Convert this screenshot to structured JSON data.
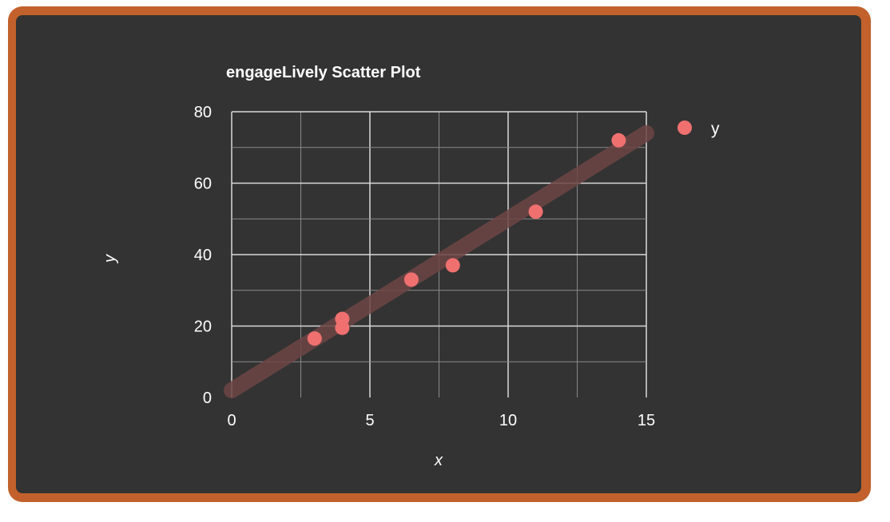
{
  "chart_data": {
    "type": "scatter",
    "title": "engageLively Scatter Plot",
    "xlabel": "x",
    "ylabel": "y",
    "xlim": [
      0,
      15
    ],
    "ylim": [
      0,
      80
    ],
    "x_ticks": [
      0,
      5,
      10,
      15
    ],
    "y_ticks": [
      0,
      20,
      40,
      60,
      80
    ],
    "x_minor_step": 2.5,
    "y_minor_step": 10,
    "grid": true,
    "legend_position": "top-right",
    "series": [
      {
        "name": "y",
        "color": "#f07070",
        "points": [
          {
            "x": 3,
            "y": 16.5
          },
          {
            "x": 4,
            "y": 19.5
          },
          {
            "x": 4,
            "y": 22
          },
          {
            "x": 6.5,
            "y": 33
          },
          {
            "x": 8,
            "y": 37
          },
          {
            "x": 11,
            "y": 52
          },
          {
            "x": 14,
            "y": 72
          }
        ]
      }
    ],
    "trendline": {
      "type": "linear",
      "color": "#6e4545",
      "start": {
        "x": 0,
        "y": 2
      },
      "end": {
        "x": 15,
        "y": 74
      }
    }
  },
  "colors": {
    "frame": "#c2612b",
    "background": "#333333",
    "text": "#ffffff",
    "grid_major": "#d9d9d9",
    "grid_minor": "#8a8a8a"
  }
}
